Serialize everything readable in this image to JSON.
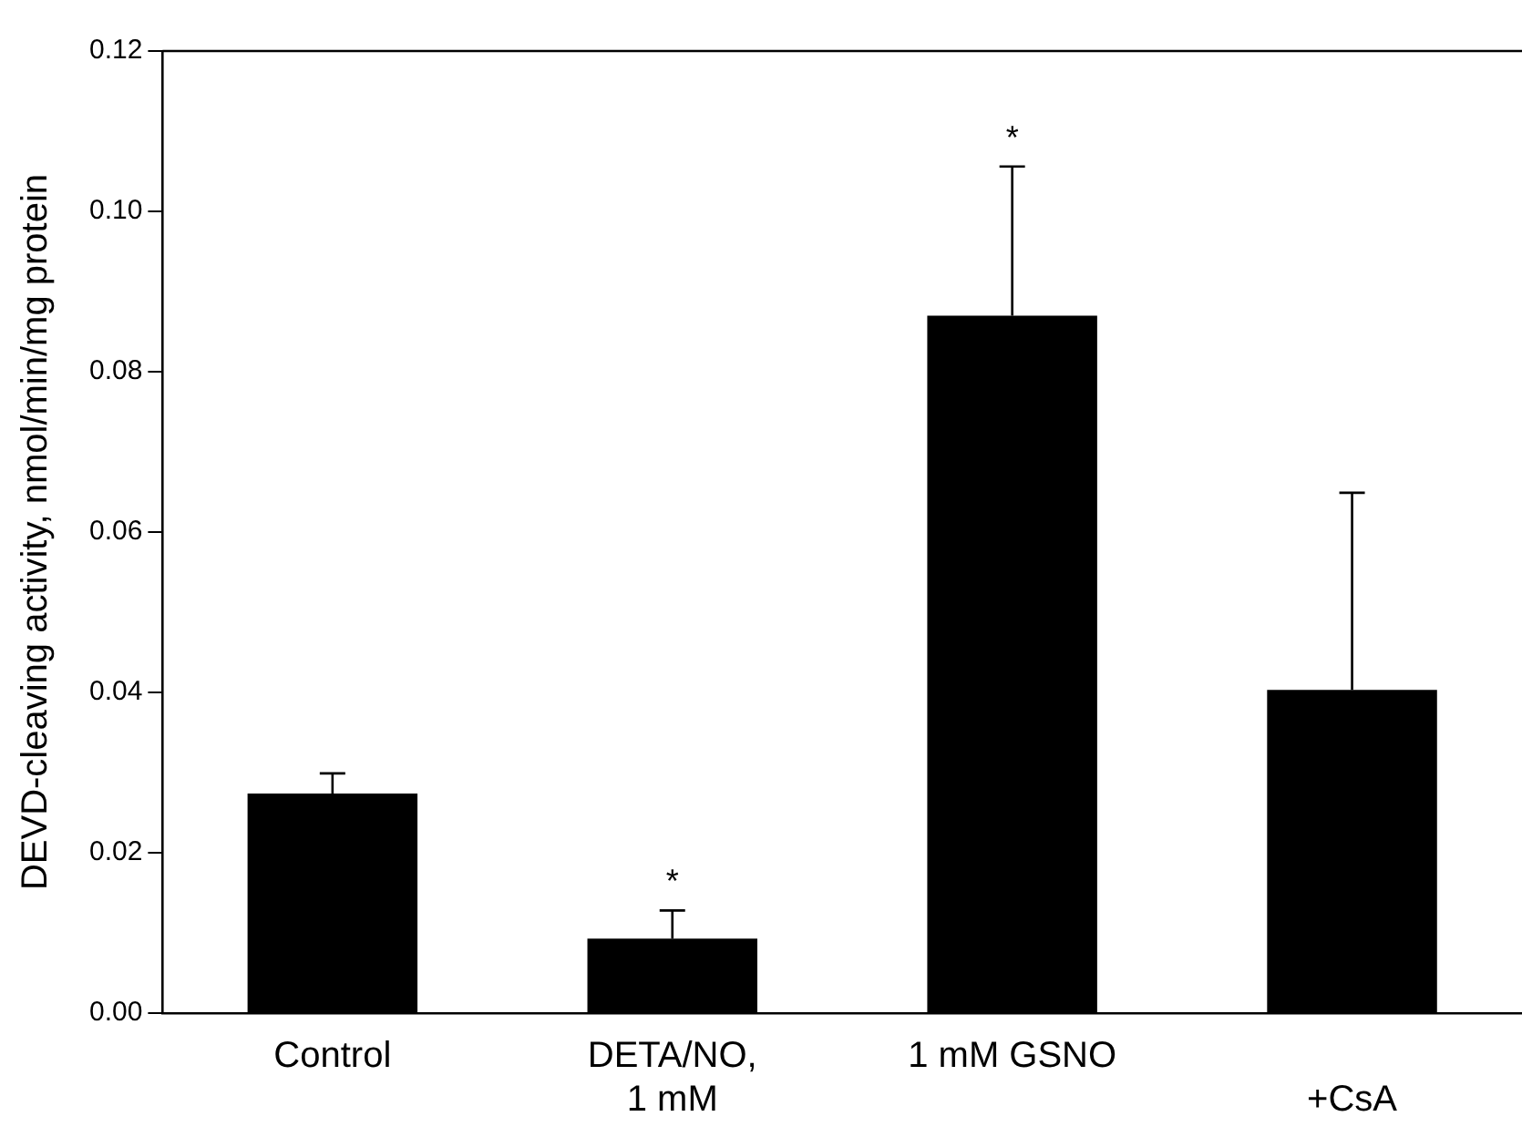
{
  "chart_data": {
    "type": "bar",
    "ylabel": "DEVD-cleaving activity, nmol/min/mg protein",
    "categories": [
      "Control",
      "DETA/NO,\n1 mM",
      "1 mM GSNO",
      "\n+CsA"
    ],
    "values": [
      0.0274,
      0.0093,
      0.087,
      0.0403
    ],
    "color": "#000000",
    "errors": [
      [
        0.0274,
        0.0299
      ],
      [
        0.0093,
        0.0128
      ],
      [
        0.087,
        0.1056
      ],
      [
        0.0403,
        0.0649
      ]
    ],
    "ylim": [
      0,
      0.12
    ],
    "yticks": [
      {
        "value": 0,
        "label": "0.00"
      },
      {
        "value": 0.02,
        "label": "0.02"
      },
      {
        "value": 0.04,
        "label": "0.04"
      },
      {
        "value": 0.06,
        "label": "0.06"
      },
      {
        "value": 0.08,
        "label": "0.08"
      },
      {
        "value": 0.1,
        "label": "0.10"
      },
      {
        "value": 0.12,
        "label": "0.12"
      }
    ],
    "grid": false,
    "legend": false,
    "annotations": [
      {
        "text": "*",
        "x": "DETA/NO,\n1 mM",
        "y": 0.0128
      },
      {
        "text": "*",
        "x": "1 mM GSNO",
        "y": 0.1056
      }
    ]
  }
}
